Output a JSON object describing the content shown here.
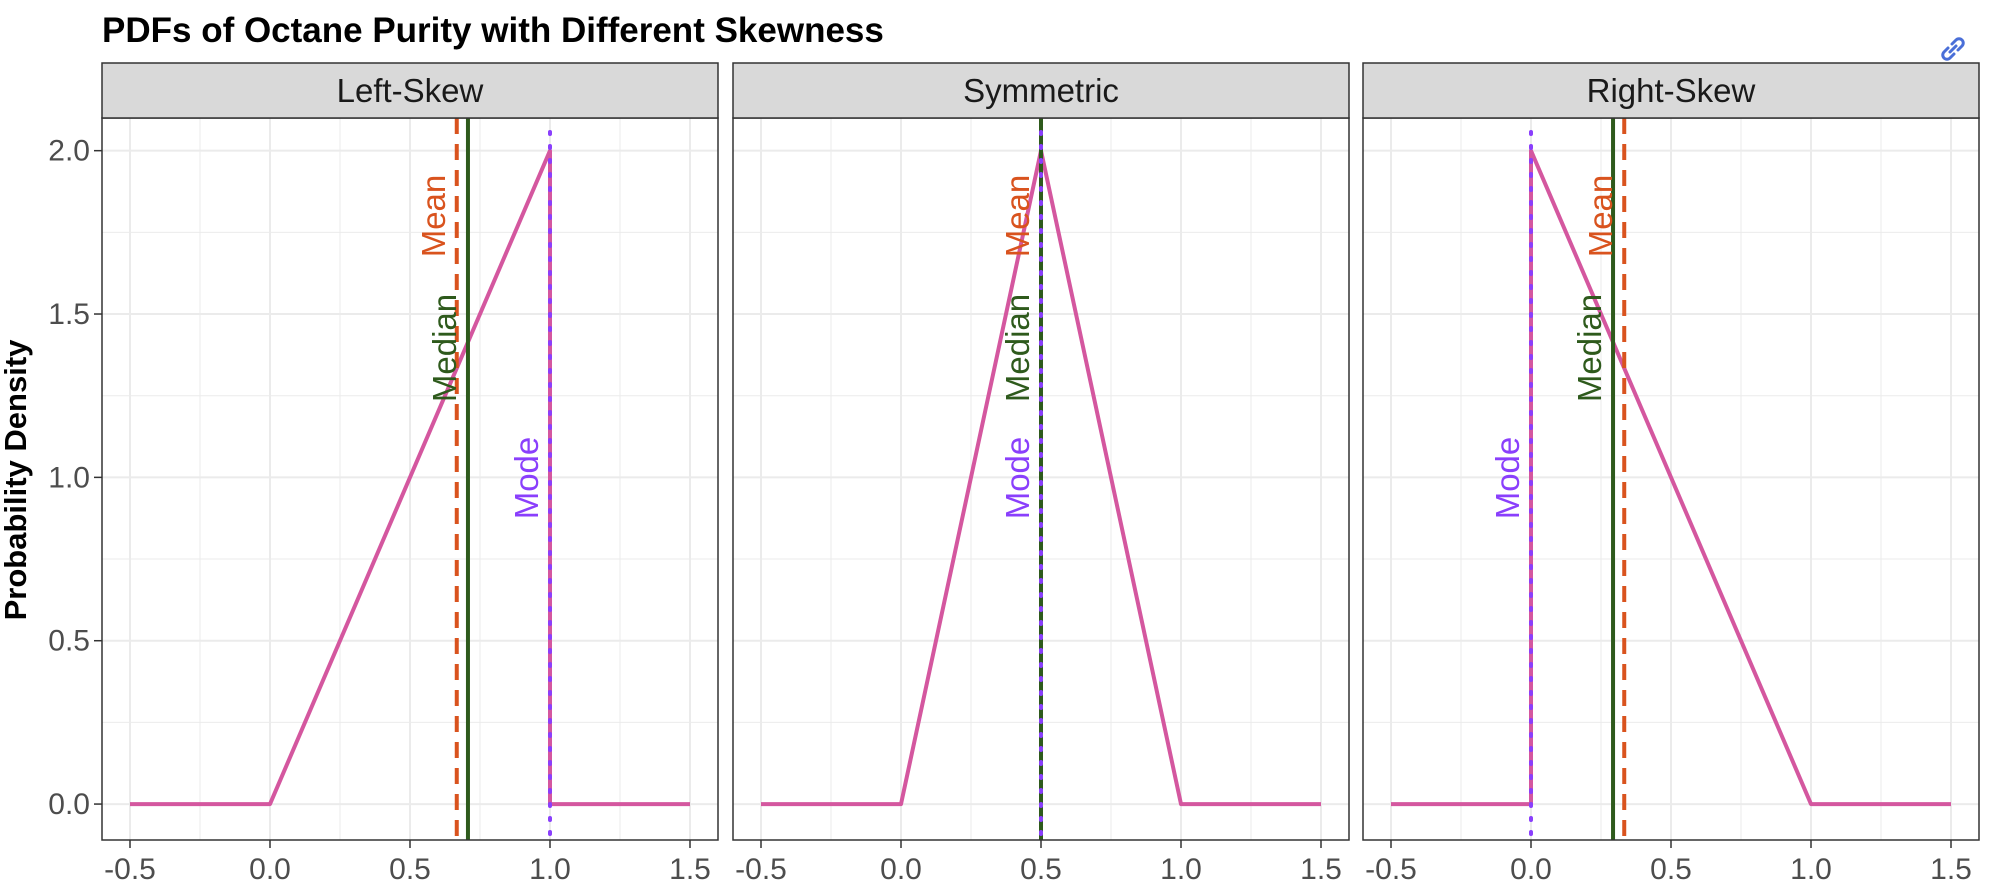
{
  "chart_data": {
    "type": "line",
    "title": "PDFs of Octane Purity with Different Skewness",
    "xlabel": "",
    "ylabel": "Probability Density",
    "xlim": [
      -0.6,
      1.6
    ],
    "ylim": [
      -0.11,
      2.1
    ],
    "x_ticks": [
      "-0.5",
      "0.0",
      "0.5",
      "1.0",
      "1.5"
    ],
    "y_ticks": [
      "0.0",
      "0.5",
      "1.0",
      "1.5",
      "2.0"
    ],
    "grid": true,
    "legend": "none",
    "colors": {
      "pdf": "#d4579f",
      "mean": "#d9531e",
      "median": "#2e5a1c",
      "mode": "#8a3ffc",
      "strip_bg": "#d9d9d9",
      "panel_border": "#333333",
      "grid": "#ebebeb"
    },
    "facets": [
      {
        "strip": "Left-Skew",
        "pdf": {
          "x": [
            -0.5,
            0.0,
            1.0,
            1.0,
            1.5
          ],
          "y": [
            0,
            0,
            2.0,
            0,
            0
          ]
        },
        "mean": 0.667,
        "median": 0.707,
        "mode": 1.0,
        "labels": {
          "mean": "Mean",
          "median": "Median",
          "mode": "Mode"
        }
      },
      {
        "strip": "Symmetric",
        "pdf": {
          "x": [
            -0.5,
            0.0,
            0.5,
            1.0,
            1.5
          ],
          "y": [
            0,
            0,
            2.0,
            0,
            0
          ]
        },
        "mean": 0.5,
        "median": 0.5,
        "mode": 0.5,
        "labels": {
          "mean": "Mean",
          "median": "Median",
          "mode": "Mode"
        }
      },
      {
        "strip": "Right-Skew",
        "pdf": {
          "x": [
            -0.5,
            0.0,
            0.0,
            1.0,
            1.5
          ],
          "y": [
            0,
            0,
            2.0,
            0,
            0
          ]
        },
        "mean": 0.333,
        "median": 0.293,
        "mode": 0.0,
        "labels": {
          "mean": "Mean",
          "median": "Median",
          "mode": "Mode"
        }
      }
    ]
  },
  "toolbar": {
    "link_icon": "link-icon"
  }
}
